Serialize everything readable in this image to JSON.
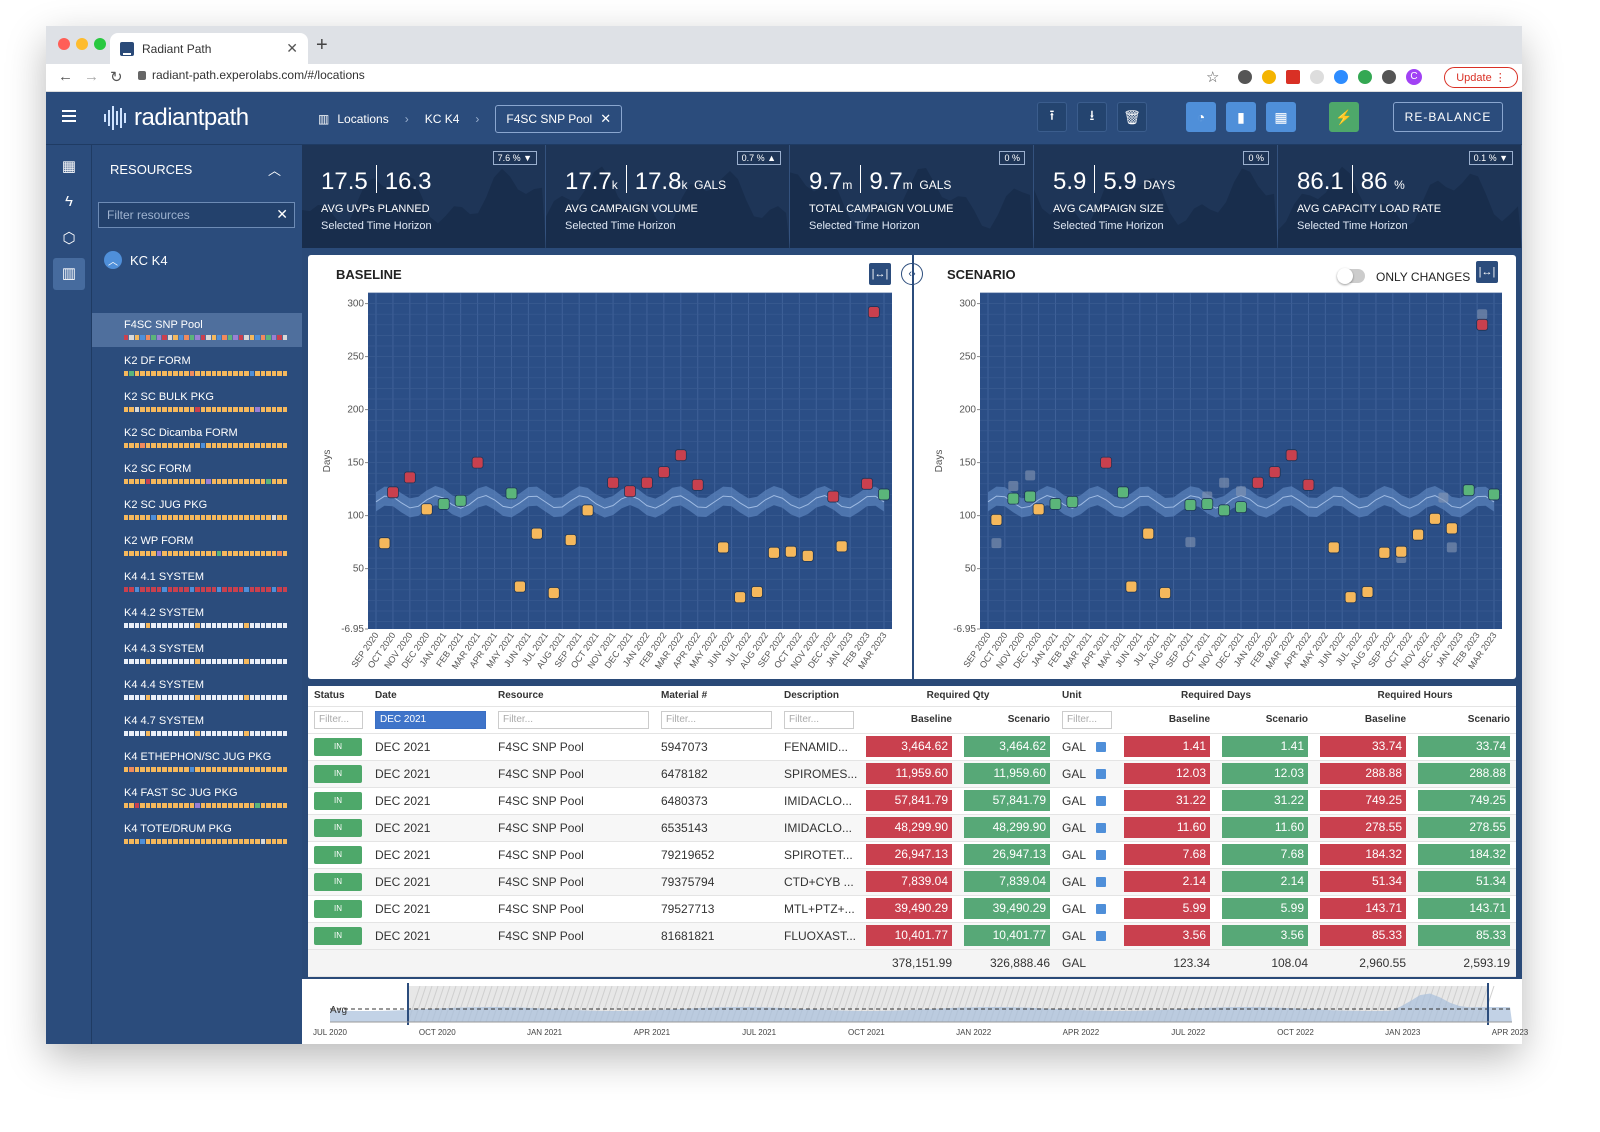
{
  "browser": {
    "tab_title": "Radiant Path",
    "url": "radiant-path.experolabs.com/#/locations",
    "update_label": "Update",
    "avatar_letter": "C"
  },
  "header": {
    "logo_text": "radiantpath",
    "breadcrumb": [
      "Locations",
      "KC K4"
    ],
    "chip": "F4SC SNP Pool",
    "rebalance_label": "RE-BALANCE"
  },
  "sidebar": {
    "title": "RESOURCES",
    "filter_placeholder": "Filter resources",
    "group": "KC K4",
    "items": [
      {
        "label": "F4SC SNP Pool",
        "selected": true
      },
      {
        "label": "K2 DF FORM"
      },
      {
        "label": "K2 SC BULK PKG"
      },
      {
        "label": "K2 SC Dicamba FORM"
      },
      {
        "label": "K2 SC FORM"
      },
      {
        "label": "K2 SC JUG PKG"
      },
      {
        "label": "K2 WP FORM"
      },
      {
        "label": "K4 4.1 SYSTEM"
      },
      {
        "label": "K4 4.2 SYSTEM"
      },
      {
        "label": "K4 4.3 SYSTEM"
      },
      {
        "label": "K4 4.4 SYSTEM"
      },
      {
        "label": "K4 4.7 SYSTEM"
      },
      {
        "label": "K4 ETHEPHON/SC JUG PKG"
      },
      {
        "label": "K4 FAST SC JUG PKG"
      },
      {
        "label": "K4 TOTE/DRUM PKG"
      }
    ]
  },
  "kpis": [
    {
      "a": "17.5",
      "b": "16.3",
      "unit_a": "",
      "unit_b": "",
      "suffix": "",
      "label": "AVG UVPs PLANNED",
      "sub": "Selected Time Horizon",
      "badge": "7.6 % ▼"
    },
    {
      "a": "17.7",
      "b": "17.8",
      "unit_a": "k",
      "unit_b": "k",
      "suffix": "GALS",
      "label": "AVG CAMPAIGN VOLUME",
      "sub": "Selected Time Horizon",
      "badge": "0.7 % ▲"
    },
    {
      "a": "9.7",
      "b": "9.7",
      "unit_a": "m",
      "unit_b": "m",
      "suffix": "GALS",
      "label": "TOTAL CAMPAIGN VOLUME",
      "sub": "Selected Time Horizon",
      "badge": "0 %"
    },
    {
      "a": "5.9",
      "b": "5.9",
      "unit_a": "",
      "unit_b": "",
      "suffix": "DAYS",
      "label": "AVG CAMPAIGN SIZE",
      "sub": "Selected Time Horizon",
      "badge": "0 %"
    },
    {
      "a": "86.1",
      "b": "86",
      "unit_a": "",
      "unit_b": "",
      "suffix": "%",
      "label": "AVG CAPACITY LOAD RATE",
      "sub": "Selected Time Horizon",
      "badge": "0.1 % ▼"
    }
  ],
  "charts": {
    "baseline_title": "BASELINE",
    "scenario_title": "SCENARIO",
    "only_changes": "ONLY CHANGES"
  },
  "chart_data": [
    {
      "type": "scatter",
      "title": "BASELINE",
      "ylabel": "Days",
      "ylim": [
        -6.95,
        310
      ],
      "yticks": [
        -6.95,
        50,
        100,
        150,
        200,
        250,
        300
      ],
      "x": [
        "SEP 2020",
        "OCT 2020",
        "NOV 2020",
        "DEC 2020",
        "JAN 2021",
        "FEB 2021",
        "MAR 2021",
        "APR 2021",
        "MAY 2021",
        "JUN 2021",
        "JUL 2021",
        "AUG 2021",
        "SEP 2021",
        "OCT 2021",
        "NOV 2021",
        "DEC 2021",
        "JAN 2022",
        "FEB 2022",
        "MAR 2022",
        "APR 2022",
        "MAY 2022",
        "JUN 2022",
        "JUL 2022",
        "AUG 2022",
        "SEP 2022",
        "OCT 2022",
        "NOV 2022",
        "DEC 2022",
        "JAN 2023",
        "FEB 2023",
        "MAR 2023"
      ],
      "series": [
        {
          "color": "#c9404e",
          "points": [
            [
              1,
              122
            ],
            [
              2,
              136
            ],
            [
              6,
              150
            ],
            [
              14,
              131
            ],
            [
              15,
              123
            ],
            [
              16,
              131
            ],
            [
              17,
              141
            ],
            [
              18,
              157
            ],
            [
              19,
              129
            ],
            [
              27,
              118
            ],
            [
              29,
              130
            ],
            [
              29.4,
              292
            ]
          ]
        },
        {
          "color": "#f5b85c",
          "points": [
            [
              0.5,
              74
            ],
            [
              3,
              106
            ],
            [
              8.5,
              33
            ],
            [
              9.5,
              83
            ],
            [
              10.5,
              27
            ],
            [
              11.5,
              77
            ],
            [
              12.5,
              105
            ],
            [
              20.5,
              70
            ],
            [
              21.5,
              23
            ],
            [
              22.5,
              28
            ],
            [
              23.5,
              65
            ],
            [
              24.5,
              66
            ],
            [
              25.5,
              62
            ],
            [
              27.5,
              71
            ]
          ]
        },
        {
          "color": "#5bb57a",
          "points": [
            [
              4,
              111
            ],
            [
              5,
              114
            ],
            [
              8,
              121
            ],
            [
              30,
              120
            ]
          ]
        }
      ]
    },
    {
      "type": "scatter",
      "title": "SCENARIO",
      "ylabel": "Days",
      "ylim": [
        -6.95,
        310
      ],
      "yticks": [
        -6.95,
        50,
        100,
        150,
        200,
        250,
        300
      ],
      "x": [
        "SEP 2020",
        "OCT 2020",
        "NOV 2020",
        "DEC 2020",
        "JAN 2021",
        "FEB 2021",
        "MAR 2021",
        "APR 2021",
        "MAY 2021",
        "JUN 2021",
        "JUL 2021",
        "AUG 2021",
        "SEP 2021",
        "OCT 2021",
        "NOV 2021",
        "DEC 2021",
        "JAN 2022",
        "FEB 2022",
        "MAR 2022",
        "APR 2022",
        "MAY 2022",
        "JUN 2022",
        "JUL 2022",
        "AUG 2022",
        "SEP 2022",
        "OCT 2022",
        "NOV 2022",
        "DEC 2022",
        "JAN 2023",
        "FEB 2023",
        "MAR 2023"
      ],
      "series": [
        {
          "color": "#c9404e",
          "points": [
            [
              7,
              150
            ],
            [
              16,
              131
            ],
            [
              17,
              141
            ],
            [
              18,
              157
            ],
            [
              19,
              129
            ],
            [
              29.3,
              280
            ]
          ]
        },
        {
          "color": "#f5b85c",
          "points": [
            [
              0.5,
              96
            ],
            [
              3,
              106
            ],
            [
              8.5,
              33
            ],
            [
              9.5,
              83
            ],
            [
              10.5,
              27
            ],
            [
              20.5,
              70
            ],
            [
              21.5,
              23
            ],
            [
              22.5,
              28
            ],
            [
              23.5,
              65
            ],
            [
              24.5,
              66
            ],
            [
              25.5,
              82
            ],
            [
              26.5,
              97
            ],
            [
              27.5,
              88
            ]
          ]
        },
        {
          "color": "#5bb57a",
          "points": [
            [
              1.5,
              116
            ],
            [
              2.5,
              118
            ],
            [
              4,
              111
            ],
            [
              5,
              113
            ],
            [
              8,
              122
            ],
            [
              12,
              110
            ],
            [
              13,
              111
            ],
            [
              14,
              105
            ],
            [
              15,
              108
            ],
            [
              28.5,
              124
            ],
            [
              30,
              120
            ]
          ]
        }
      ]
    }
  ],
  "table": {
    "headers": {
      "status": "Status",
      "date": "Date",
      "resource": "Resource",
      "material": "Material #",
      "description": "Description",
      "req_qty": "Required Qty",
      "unit": "Unit",
      "req_days": "Required Days",
      "req_hours": "Required Hours",
      "baseline": "Baseline",
      "scenario": "Scenario"
    },
    "filter_placeholder": "Filter...",
    "date_filter": "DEC 2021",
    "rows": [
      {
        "status": "IN",
        "date": "DEC 2021",
        "resource": "F4SC SNP Pool",
        "material": "5947073",
        "desc": "FENAMID...",
        "qb": "3,464.62",
        "qs": "3,464.62",
        "unit": "GAL",
        "db": "1.41",
        "ds": "1.41",
        "hb": "33.74",
        "hs": "33.74"
      },
      {
        "status": "IN",
        "date": "DEC 2021",
        "resource": "F4SC SNP Pool",
        "material": "6478182",
        "desc": "SPIROMES...",
        "qb": "11,959.60",
        "qs": "11,959.60",
        "unit": "GAL",
        "db": "12.03",
        "ds": "12.03",
        "hb": "288.88",
        "hs": "288.88"
      },
      {
        "status": "IN",
        "date": "DEC 2021",
        "resource": "F4SC SNP Pool",
        "material": "6480373",
        "desc": "IMIDACLO...",
        "qb": "57,841.79",
        "qs": "57,841.79",
        "unit": "GAL",
        "db": "31.22",
        "ds": "31.22",
        "hb": "749.25",
        "hs": "749.25"
      },
      {
        "status": "IN",
        "date": "DEC 2021",
        "resource": "F4SC SNP Pool",
        "material": "6535143",
        "desc": "IMIDACLO...",
        "qb": "48,299.90",
        "qs": "48,299.90",
        "unit": "GAL",
        "db": "11.60",
        "ds": "11.60",
        "hb": "278.55",
        "hs": "278.55"
      },
      {
        "status": "IN",
        "date": "DEC 2021",
        "resource": "F4SC SNP Pool",
        "material": "79219652",
        "desc": "SPIROTET...",
        "qb": "26,947.13",
        "qs": "26,947.13",
        "unit": "GAL",
        "db": "7.68",
        "ds": "7.68",
        "hb": "184.32",
        "hs": "184.32"
      },
      {
        "status": "IN",
        "date": "DEC 2021",
        "resource": "F4SC SNP Pool",
        "material": "79375794",
        "desc": "CTD+CYB ...",
        "qb": "7,839.04",
        "qs": "7,839.04",
        "unit": "GAL",
        "db": "2.14",
        "ds": "2.14",
        "hb": "51.34",
        "hs": "51.34"
      },
      {
        "status": "IN",
        "date": "DEC 2021",
        "resource": "F4SC SNP Pool",
        "material": "79527713",
        "desc": "MTL+PTZ+...",
        "qb": "39,490.29",
        "qs": "39,490.29",
        "unit": "GAL",
        "db": "5.99",
        "ds": "5.99",
        "hb": "143.71",
        "hs": "143.71"
      },
      {
        "status": "IN",
        "date": "DEC 2021",
        "resource": "F4SC SNP Pool",
        "material": "81681821",
        "desc": "FLUOXAST...",
        "qb": "10,401.77",
        "qs": "10,401.77",
        "unit": "GAL",
        "db": "3.56",
        "ds": "3.56",
        "hb": "85.33",
        "hs": "85.33"
      }
    ],
    "totals": {
      "qb": "378,151.99",
      "qs": "326,888.46",
      "unit": "GAL",
      "db": "123.34",
      "ds": "108.04",
      "hb": "2,960.55",
      "hs": "2,593.19"
    }
  },
  "timeline": {
    "avg_label": "Avg",
    "ticks": [
      "JUL 2020",
      "OCT 2020",
      "JAN 2021",
      "APR 2021",
      "JUL 2021",
      "OCT 2021",
      "JAN 2022",
      "APR 2022",
      "JUL 2022",
      "OCT 2022",
      "JAN 2023",
      "APR 2023"
    ]
  }
}
